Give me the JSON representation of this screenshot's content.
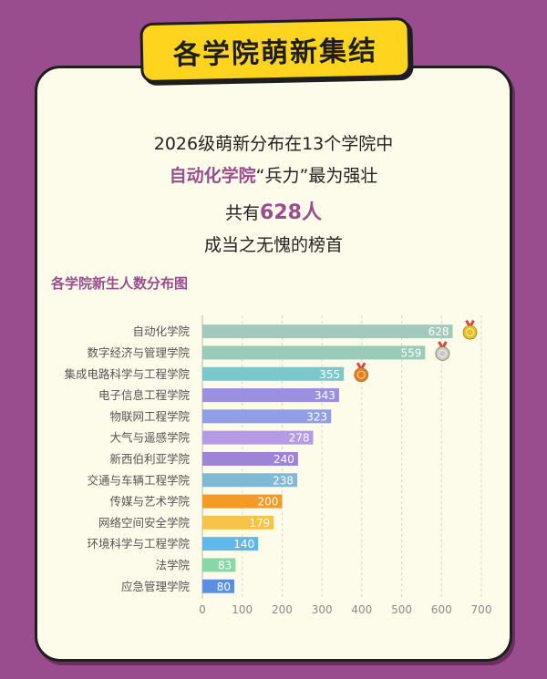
{
  "banner": {
    "title": "各学院萌新集结"
  },
  "intro": {
    "line1": "2026级萌新分布在13个学院中",
    "line2_highlight": "自动化学院",
    "line2_rest": "“兵力”最为强壮",
    "line3_prefix": "共有",
    "line3_highlight": "628人",
    "line4": "成当之无愧的榜首"
  },
  "chart_data": {
    "type": "bar",
    "orientation": "horizontal",
    "title": "各学院新生人数分布图",
    "categories": [
      "自动化学院",
      "数字经济与管理学院",
      "集成电路科学与工程学院",
      "电子信息工程学院",
      "物联网工程学院",
      "大气与遥感学院",
      "新西伯利亚学院",
      "交通与车辆工程学院",
      "传媒与艺术学院",
      "网络空间安全学院",
      "环境科学与工程学院",
      "法学院",
      "应急管理学院"
    ],
    "values": [
      628,
      559,
      355,
      343,
      323,
      278,
      240,
      238,
      200,
      179,
      140,
      83,
      80
    ],
    "colors": [
      "#a3c9bd",
      "#99cbb8",
      "#7cc7cc",
      "#9b90df",
      "#8f9ee6",
      "#b59ae6",
      "#9d84d9",
      "#7fb9d6",
      "#f59a25",
      "#f7c34a",
      "#5eb9ea",
      "#87d8a6",
      "#5b8fe0"
    ],
    "medals": [
      {
        "rank": 1,
        "color": "#e8c21e"
      },
      {
        "rank": 2,
        "color": "#c8c8c8"
      },
      {
        "rank": 3,
        "color": "#e57d1e"
      }
    ],
    "xlim": [
      0,
      700
    ],
    "xticks": [
      0,
      100,
      200,
      300,
      400,
      500,
      600,
      700
    ],
    "grid": true
  }
}
